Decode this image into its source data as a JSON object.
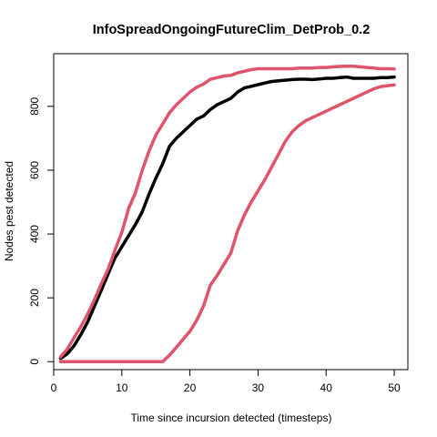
{
  "chart_data": {
    "type": "line",
    "title": "InfoSpreadOngoingFutureClim_DetProb_0.2",
    "xlabel": "Time since incursion detected (timesteps)",
    "ylabel": "Nodes pest detected",
    "xlim": [
      0,
      52
    ],
    "ylim": [
      -25,
      965
    ],
    "xticks": [
      0,
      10,
      20,
      30,
      40,
      50
    ],
    "yticks": [
      0,
      200,
      400,
      600,
      800
    ],
    "grid": false,
    "legend": "none",
    "x": [
      1,
      2,
      3,
      4,
      5,
      6,
      7,
      8,
      9,
      10,
      11,
      12,
      13,
      14,
      15,
      16,
      17,
      18,
      19,
      20,
      21,
      22,
      23,
      24,
      25,
      26,
      27,
      28,
      29,
      30,
      31,
      32,
      33,
      34,
      35,
      36,
      37,
      38,
      39,
      40,
      41,
      42,
      43,
      44,
      45,
      46,
      47,
      48,
      49,
      50
    ],
    "series": [
      {
        "color": "#000000",
        "values": [
          10,
          25,
          50,
          85,
          125,
          175,
          225,
          275,
          325,
          360,
          395,
          430,
          470,
          525,
          575,
          620,
          675,
          700,
          720,
          740,
          760,
          770,
          790,
          805,
          815,
          825,
          845,
          858,
          863,
          868,
          873,
          878,
          880,
          882,
          884,
          885,
          885,
          884,
          886,
          888,
          888,
          890,
          892,
          888,
          888,
          888,
          888,
          890,
          890,
          892
        ]
      },
      {
        "color": "#DF536B",
        "values": [
          15,
          40,
          75,
          110,
          150,
          195,
          245,
          290,
          350,
          405,
          480,
          530,
          600,
          660,
          710,
          745,
          780,
          805,
          825,
          845,
          860,
          870,
          885,
          890,
          895,
          897,
          905,
          910,
          915,
          918,
          918,
          918,
          918,
          918,
          918,
          920,
          920,
          920,
          922,
          922,
          924,
          925,
          926,
          926,
          924,
          922,
          920,
          918,
          918,
          917
        ]
      },
      {
        "color": "#DF536B",
        "values": [
          0,
          0,
          0,
          0,
          0,
          0,
          0,
          0,
          0,
          0,
          0,
          0,
          0,
          0,
          0,
          0,
          20,
          45,
          70,
          95,
          130,
          175,
          240,
          270,
          305,
          340,
          410,
          460,
          500,
          535,
          570,
          610,
          650,
          690,
          720,
          740,
          755,
          765,
          775,
          785,
          795,
          805,
          815,
          825,
          835,
          845,
          855,
          862,
          865,
          867
        ]
      }
    ]
  }
}
